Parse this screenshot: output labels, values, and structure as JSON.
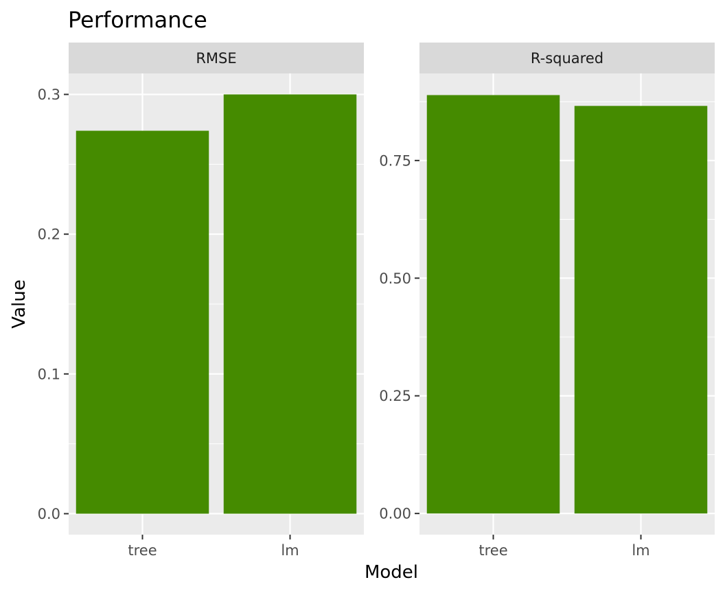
{
  "chart_data": {
    "type": "bar",
    "title": "Performance",
    "xlabel": "Model",
    "ylabel": "Value",
    "categories": [
      "tree",
      "lm"
    ],
    "bar_color": "#458B00",
    "panel_background": "#EBEBEB",
    "strip_background": "#D9D9D9",
    "grid": true,
    "legend": "none",
    "facets": [
      {
        "strip": "RMSE",
        "values": [
          0.274,
          0.3
        ],
        "ylim": [
          -0.015,
          0.315
        ],
        "yticks": [
          0.0,
          0.1,
          0.2,
          0.3
        ],
        "ytick_labels": [
          "0.0",
          "0.1",
          "0.2",
          "0.3"
        ],
        "yminor": [
          0.05,
          0.15,
          0.25
        ]
      },
      {
        "strip": "R-squared",
        "values": [
          0.889,
          0.866
        ],
        "ylim": [
          -0.045,
          0.935
        ],
        "yticks": [
          0.0,
          0.25,
          0.5,
          0.75
        ],
        "ytick_labels": [
          "0.00",
          "0.25",
          "0.50",
          "0.75"
        ],
        "yminor": [
          0.125,
          0.375,
          0.625,
          0.875
        ]
      }
    ]
  }
}
